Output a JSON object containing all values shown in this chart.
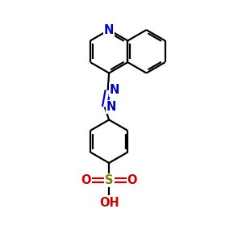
{
  "bg_color": "#ffffff",
  "bond_color": "#000000",
  "n_color": "#0000cc",
  "o_color": "#cc0000",
  "s_color": "#808000",
  "lw": 1.6,
  "figsize": [
    3.0,
    3.0
  ],
  "dpi": 100,
  "xlim": [
    0,
    10
  ],
  "ylim": [
    0,
    10
  ]
}
